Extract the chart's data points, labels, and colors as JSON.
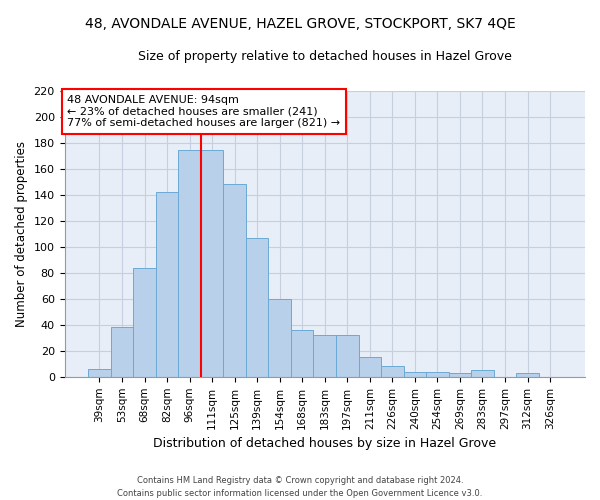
{
  "title": "48, AVONDALE AVENUE, HAZEL GROVE, STOCKPORT, SK7 4QE",
  "subtitle": "Size of property relative to detached houses in Hazel Grove",
  "xlabel": "Distribution of detached houses by size in Hazel Grove",
  "ylabel": "Number of detached properties",
  "categories": [
    "39sqm",
    "53sqm",
    "68sqm",
    "82sqm",
    "96sqm",
    "111sqm",
    "125sqm",
    "139sqm",
    "154sqm",
    "168sqm",
    "183sqm",
    "197sqm",
    "211sqm",
    "226sqm",
    "240sqm",
    "254sqm",
    "269sqm",
    "283sqm",
    "297sqm",
    "312sqm",
    "326sqm"
  ],
  "values": [
    6,
    38,
    84,
    142,
    174,
    174,
    148,
    107,
    60,
    36,
    32,
    32,
    15,
    8,
    4,
    4,
    3,
    5,
    0,
    3,
    0
  ],
  "bar_color": "#b8d0ea",
  "bar_edge_color": "#6aaad4",
  "red_line_x": 4.5,
  "property_label": "48 AVONDALE AVENUE: 94sqm",
  "annotation_line1": "← 23% of detached houses are smaller (241)",
  "annotation_line2": "77% of semi-detached houses are larger (821) →",
  "ylim": [
    0,
    220
  ],
  "yticks": [
    0,
    20,
    40,
    60,
    80,
    100,
    120,
    140,
    160,
    180,
    200,
    220
  ],
  "footer1": "Contains HM Land Registry data © Crown copyright and database right 2024.",
  "footer2": "Contains public sector information licensed under the Open Government Licence v3.0.",
  "bg_color": "#e8eef8",
  "grid_color": "#c5cfe0"
}
